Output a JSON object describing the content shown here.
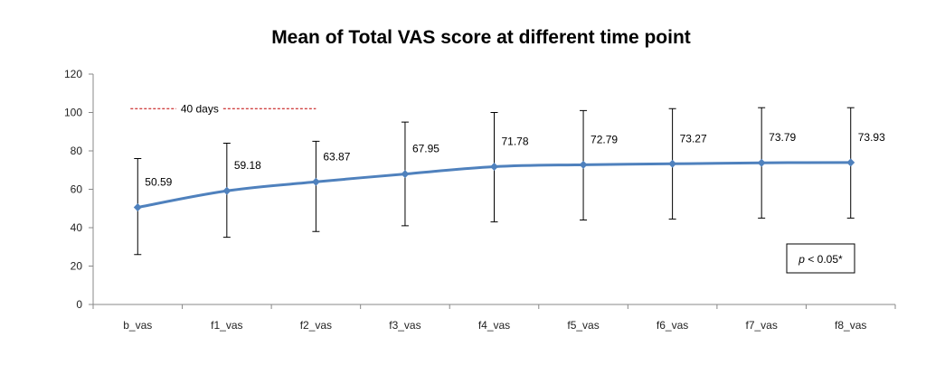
{
  "chart_data": {
    "type": "line",
    "title": "Mean of Total VAS score at different time point",
    "xlabel": "",
    "ylabel": "",
    "categories": [
      "b_vas",
      "f1_vas",
      "f2_vas",
      "f3_vas",
      "f4_vas",
      "f5_vas",
      "f6_vas",
      "f7_vas",
      "f8_vas"
    ],
    "series": [
      {
        "values": [
          50.59,
          59.18,
          63.87,
          67.95,
          71.78,
          72.79,
          73.27,
          73.79,
          73.93
        ],
        "error_low": [
          26,
          35,
          38,
          41,
          43,
          44,
          44.5,
          45,
          45
        ],
        "error_high": [
          76,
          84,
          85,
          95,
          100,
          101,
          102,
          102.5,
          102.5
        ],
        "color": "#4F81BD"
      }
    ],
    "data_labels": [
      "50.59",
      "59.18",
      "63.87",
      "67.95",
      "71.78",
      "72.79",
      "73.27",
      "73.79",
      "73.93"
    ],
    "ylim": [
      0,
      120
    ],
    "yticks": [
      0,
      20,
      40,
      60,
      80,
      100,
      120
    ],
    "grid": false,
    "legend": "none",
    "annotations": {
      "period_label": "40 days",
      "period_value": 102,
      "period_color": "#C00000",
      "pvalue_italic": "p",
      "pvalue_rest": " < 0.05*"
    }
  }
}
